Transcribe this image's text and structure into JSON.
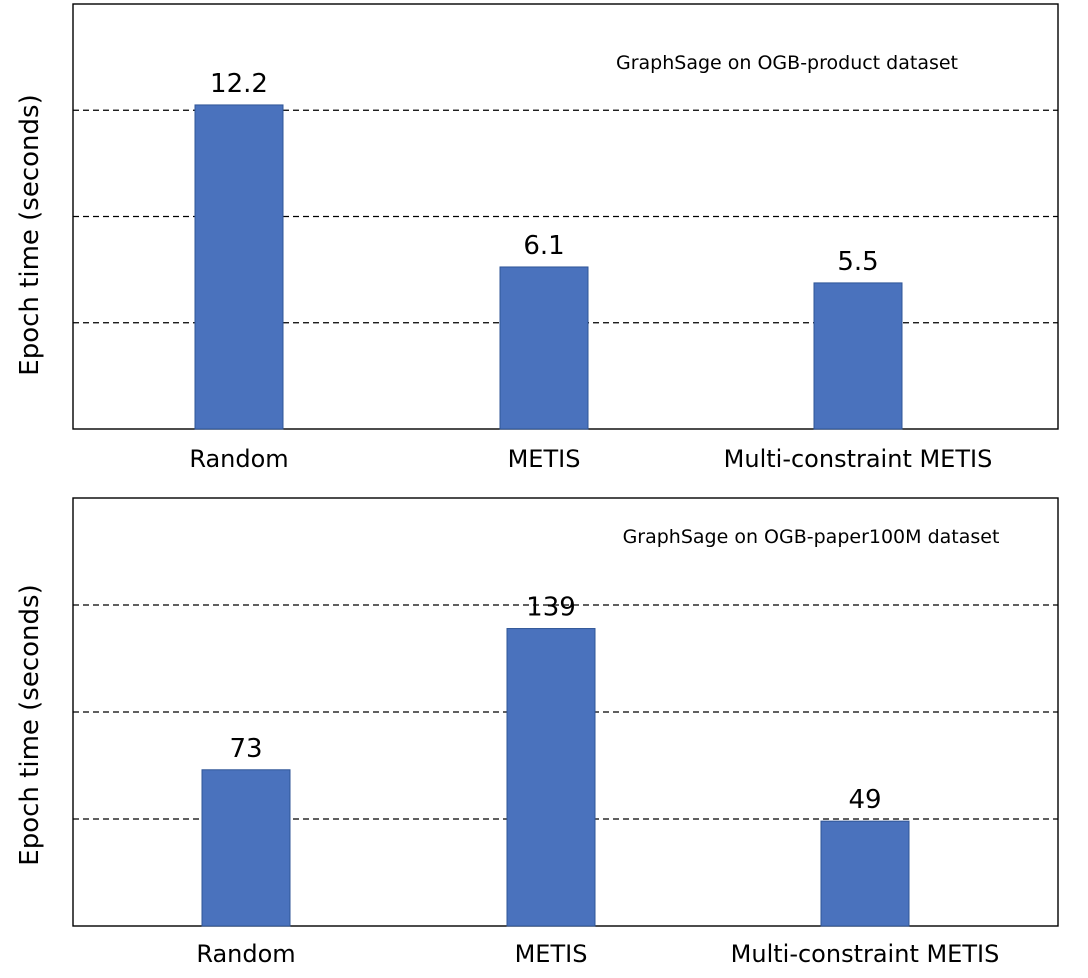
{
  "chart_data": [
    {
      "type": "bar",
      "title": "GraphSage on OGB-product dataset",
      "xlabel": "",
      "ylabel": "Epoch time (seconds)",
      "categories": [
        "Random",
        "METIS",
        "Multi-constraint METIS"
      ],
      "values": [
        12.2,
        6.1,
        5.5
      ],
      "value_labels": [
        "12.2",
        "6.1",
        "5.5"
      ],
      "ylim": [
        0,
        16
      ],
      "grid_values": [
        4,
        8,
        12
      ],
      "grid": "horizontal dashed",
      "colors": {
        "bar": "#4a72bd",
        "bar_edge": "#2f5597"
      }
    },
    {
      "type": "bar",
      "title": "GraphSage on OGB-paper100M dataset",
      "xlabel": "",
      "ylabel": "Epoch time (seconds)",
      "categories": [
        "Random",
        "METIS",
        "Multi-constraint METIS"
      ],
      "values": [
        73,
        139,
        49
      ],
      "value_labels": [
        "73",
        "139",
        "49"
      ],
      "ylim": [
        0,
        200
      ],
      "grid_values": [
        50,
        100,
        150
      ],
      "grid": "horizontal dashed",
      "colors": {
        "bar": "#4a72bd",
        "bar_edge": "#2f5597"
      }
    }
  ]
}
